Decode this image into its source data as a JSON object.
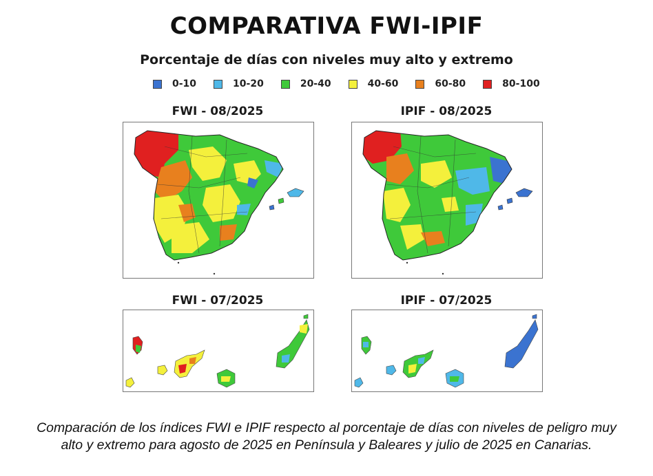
{
  "title": "COMPARATIVA FWI-IPIF",
  "subtitle": "Porcentaje de días con niveles muy alto y extremo",
  "legend": [
    {
      "label": "0-10",
      "color": "#3b73d0"
    },
    {
      "label": "10-20",
      "color": "#4fb8e8"
    },
    {
      "label": "20-40",
      "color": "#3fc93a"
    },
    {
      "label": "40-60",
      "color": "#f4f03c"
    },
    {
      "label": "60-80",
      "color": "#e8801e"
    },
    {
      "label": "80-100",
      "color": "#e02020"
    }
  ],
  "panels": {
    "fwi_aug": {
      "title": "FWI - 08/2025",
      "region": "Península y Baleares",
      "index": "FWI"
    },
    "ipif_aug": {
      "title": "IPIF - 08/2025",
      "region": "Península y Baleares",
      "index": "IPIF"
    },
    "fwi_jul": {
      "title": "FWI - 07/2025",
      "region": "Canarias",
      "index": "FWI"
    },
    "ipif_jul": {
      "title": "IPIF - 07/2025",
      "region": "Canarias",
      "index": "IPIF"
    }
  },
  "caption": {
    "line1": "Comparación de los índices FWI e IPIF respecto al porcentaje de días con niveles de peligro muy",
    "line2": "alto y extremo para agosto de 2025 en Península y Baleares y julio de 2025 en Canarias."
  }
}
